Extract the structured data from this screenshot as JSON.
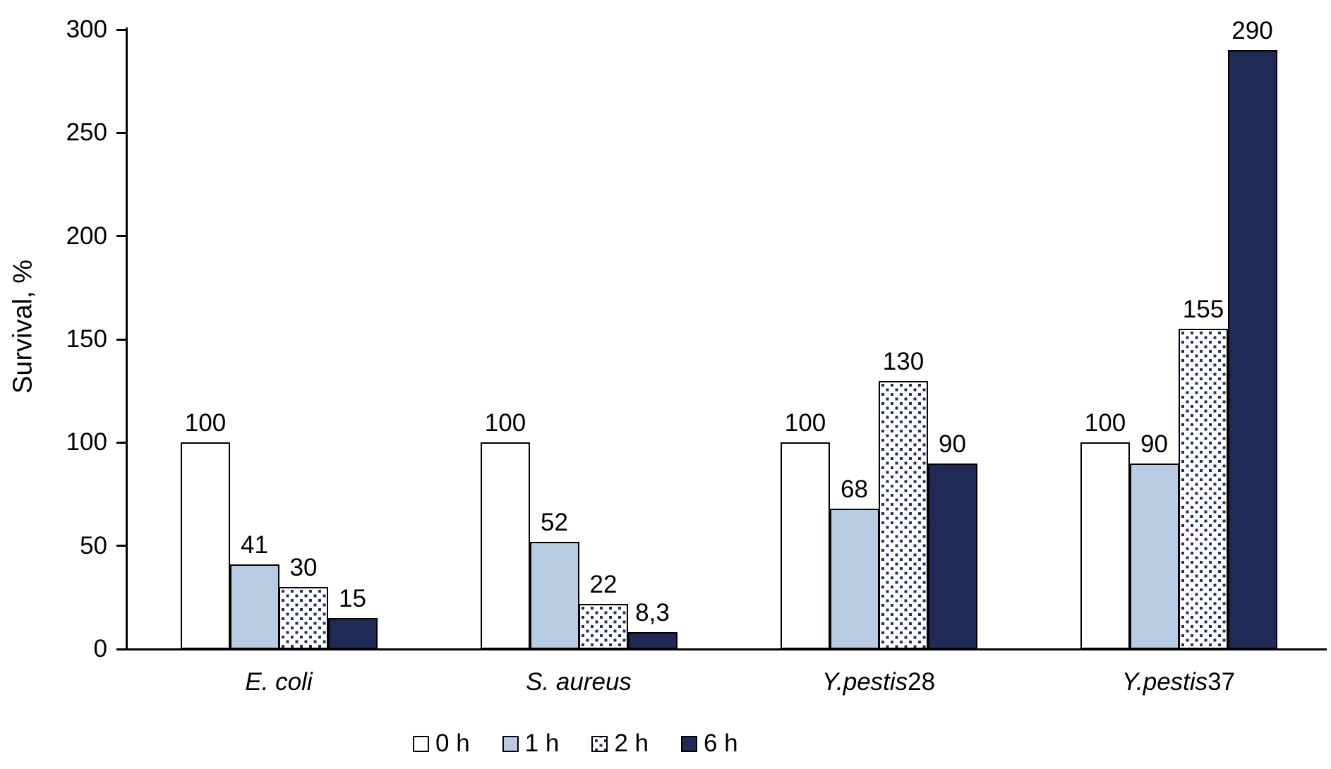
{
  "colors": {
    "axis": "#000000",
    "text": "#000000",
    "background": "#FFFFFF",
    "series_white": "#FFFFFF",
    "series_light_blue": "#B8CCE4",
    "series_dot_navy": "#23305F",
    "series_dark_navy": "#1F2A55",
    "bar_border": "#000000"
  },
  "chart_data": {
    "type": "bar",
    "title": "",
    "xlabel": "",
    "ylabel": "Survival, %",
    "ylim": [
      0,
      300
    ],
    "yticks": [
      "0",
      "50",
      "100",
      "150",
      "200",
      "250",
      "300"
    ],
    "grid": false,
    "legend_position": "bottom",
    "categories": [
      {
        "label": "E. coli",
        "italic": "E. coli",
        "plain": ""
      },
      {
        "label": "S. aureus",
        "italic": "S. aureus",
        "plain": ""
      },
      {
        "label": "Y.pestis28",
        "italic": "Y.pestis",
        "plain": "28"
      },
      {
        "label": "Y.pestis37",
        "italic": "Y.pestis",
        "plain": "37"
      }
    ],
    "series": [
      {
        "name": "0 h",
        "pattern": "solid",
        "fill": "#FFFFFF",
        "border": "#000000",
        "values": [
          100,
          100,
          100,
          100
        ],
        "labels": [
          "100",
          "100",
          "100",
          "100"
        ]
      },
      {
        "name": "1 h",
        "pattern": "solid",
        "fill": "#B8CCE4",
        "border": "#000000",
        "values": [
          41,
          52,
          68,
          90
        ],
        "labels": [
          "41",
          "52",
          "68",
          "90"
        ]
      },
      {
        "name": "2 h",
        "pattern": "dots",
        "fill": "#FFFFFF",
        "dot_color": "#23305F",
        "border": "#000000",
        "values": [
          30,
          22,
          130,
          155
        ],
        "labels": [
          "30",
          "22",
          "130",
          "155"
        ]
      },
      {
        "name": "6 h",
        "pattern": "solid",
        "fill": "#1F2A55",
        "border": "#000000",
        "values": [
          15,
          8.3,
          90,
          290
        ],
        "labels": [
          "15",
          "8,3",
          "90",
          "290"
        ]
      }
    ]
  }
}
